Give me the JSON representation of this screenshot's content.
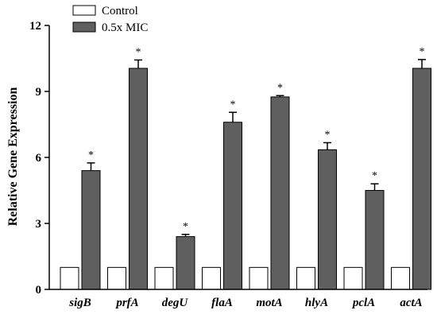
{
  "chart_data": {
    "type": "bar",
    "title": "",
    "xlabel": "",
    "ylabel": "Relative Gene Expression",
    "ylim": [
      0,
      12
    ],
    "yticks": [
      "0",
      "3",
      "6",
      "9",
      "12"
    ],
    "ytick_values": [
      0,
      3,
      6,
      9,
      12
    ],
    "categories": [
      "sigB",
      "prfA",
      "degU",
      "flaA",
      "motA",
      "hlyA",
      "pclA",
      "actA"
    ],
    "legend_position": "top-left",
    "grid": false,
    "series": [
      {
        "name": "Control",
        "color": "#ffffff",
        "stroke": "#000000",
        "values": [
          1,
          1,
          1,
          1,
          1,
          1,
          1,
          1
        ],
        "errors": [
          0,
          0,
          0,
          0,
          0,
          0,
          0,
          0
        ]
      },
      {
        "name": "0.5x MIC",
        "color": "#5f5f5f",
        "stroke": "#000000",
        "values": [
          5.4,
          10.05,
          2.4,
          7.6,
          8.75,
          6.35,
          4.5,
          10.05
        ],
        "errors": [
          0.35,
          0.38,
          0.1,
          0.45,
          0.06,
          0.32,
          0.3,
          0.4
        ]
      }
    ],
    "annotations": [
      "*",
      "*",
      "*",
      "*",
      "*",
      "*",
      "*",
      "*"
    ]
  }
}
